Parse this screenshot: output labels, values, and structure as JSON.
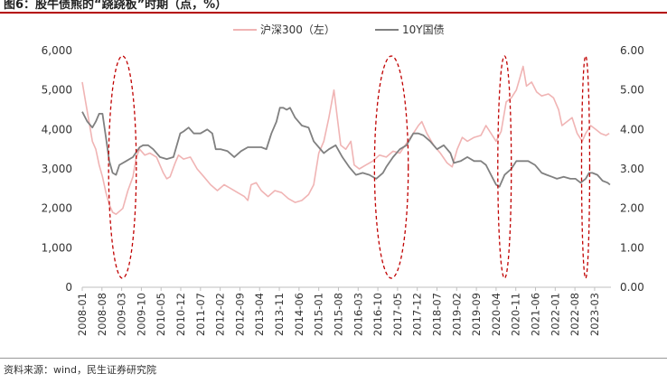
{
  "title": "图6：股牛债熊的“跷跷板”时期（点，%）",
  "source": "资料来源：wind，民生证券研究院",
  "chart_data": {
    "type": "line",
    "legend": {
      "position": "top-center"
    },
    "y_left": {
      "min": 0,
      "max": 6000,
      "ticks": [
        "0",
        "1,000",
        "2,000",
        "3,000",
        "4,000",
        "5,000",
        "6,000"
      ]
    },
    "y_right": {
      "min": 0,
      "max": 6,
      "ticks": [
        "0.00",
        "1.00",
        "2.00",
        "3.00",
        "4.00",
        "5.00",
        "6.00"
      ]
    },
    "x_ticks": [
      "2008-01",
      "2008-08",
      "2009-03",
      "2009-10",
      "2010-05",
      "2010-12",
      "2011-07",
      "2012-02",
      "2012-09",
      "2013-04",
      "2013-11",
      "2014-06",
      "2015-01",
      "2015-08",
      "2016-03",
      "2016-10",
      "2017-05",
      "2017-12",
      "2018-07",
      "2019-02",
      "2019-09",
      "2020-04",
      "2020-11",
      "2021-06",
      "2022-01",
      "2022-08",
      "2023-03"
    ],
    "series": [
      {
        "name": "沪深300（左）",
        "axis": "left",
        "color": "#f0b4b4",
        "points": [
          [
            2008.0,
            5200
          ],
          [
            2008.1,
            4700
          ],
          [
            2008.2,
            4200
          ],
          [
            2008.3,
            3700
          ],
          [
            2008.4,
            3500
          ],
          [
            2008.5,
            3100
          ],
          [
            2008.6,
            2800
          ],
          [
            2008.7,
            2400
          ],
          [
            2008.8,
            2100
          ],
          [
            2008.9,
            1900
          ],
          [
            2009.0,
            1850
          ],
          [
            2009.2,
            2000
          ],
          [
            2009.35,
            2450
          ],
          [
            2009.5,
            2800
          ],
          [
            2009.6,
            3300
          ],
          [
            2009.7,
            3500
          ],
          [
            2009.85,
            3350
          ],
          [
            2010.0,
            3400
          ],
          [
            2010.2,
            3300
          ],
          [
            2010.4,
            2900
          ],
          [
            2010.5,
            2750
          ],
          [
            2010.6,
            2800
          ],
          [
            2010.75,
            3150
          ],
          [
            2010.85,
            3350
          ],
          [
            2011.0,
            3250
          ],
          [
            2011.2,
            3300
          ],
          [
            2011.4,
            3000
          ],
          [
            2011.6,
            2800
          ],
          [
            2011.8,
            2600
          ],
          [
            2012.0,
            2450
          ],
          [
            2012.2,
            2600
          ],
          [
            2012.4,
            2500
          ],
          [
            2012.6,
            2400
          ],
          [
            2012.8,
            2300
          ],
          [
            2012.9,
            2200
          ],
          [
            2013.0,
            2600
          ],
          [
            2013.15,
            2650
          ],
          [
            2013.3,
            2450
          ],
          [
            2013.5,
            2300
          ],
          [
            2013.7,
            2450
          ],
          [
            2013.9,
            2400
          ],
          [
            2014.1,
            2250
          ],
          [
            2014.3,
            2150
          ],
          [
            2014.5,
            2200
          ],
          [
            2014.7,
            2350
          ],
          [
            2014.85,
            2600
          ],
          [
            2015.0,
            3400
          ],
          [
            2015.15,
            3700
          ],
          [
            2015.3,
            4300
          ],
          [
            2015.45,
            5000
          ],
          [
            2015.55,
            4300
          ],
          [
            2015.65,
            3600
          ],
          [
            2015.8,
            3500
          ],
          [
            2015.95,
            3700
          ],
          [
            2016.05,
            3100
          ],
          [
            2016.2,
            3000
          ],
          [
            2016.4,
            3100
          ],
          [
            2016.6,
            3200
          ],
          [
            2016.8,
            3350
          ],
          [
            2017.0,
            3300
          ],
          [
            2017.2,
            3450
          ],
          [
            2017.4,
            3400
          ],
          [
            2017.6,
            3650
          ],
          [
            2017.8,
            3900
          ],
          [
            2017.95,
            4100
          ],
          [
            2018.05,
            4200
          ],
          [
            2018.2,
            3900
          ],
          [
            2018.4,
            3600
          ],
          [
            2018.6,
            3400
          ],
          [
            2018.8,
            3150
          ],
          [
            2018.95,
            3050
          ],
          [
            2019.1,
            3500
          ],
          [
            2019.25,
            3800
          ],
          [
            2019.4,
            3700
          ],
          [
            2019.6,
            3800
          ],
          [
            2019.8,
            3850
          ],
          [
            2019.95,
            4100
          ],
          [
            2020.1,
            3900
          ],
          [
            2020.25,
            3700
          ],
          [
            2020.4,
            3950
          ],
          [
            2020.55,
            4700
          ],
          [
            2020.7,
            4800
          ],
          [
            2020.85,
            5000
          ],
          [
            2020.95,
            5300
          ],
          [
            2021.05,
            5600
          ],
          [
            2021.15,
            5100
          ],
          [
            2021.3,
            5200
          ],
          [
            2021.45,
            4950
          ],
          [
            2021.6,
            4850
          ],
          [
            2021.8,
            4900
          ],
          [
            2021.95,
            4800
          ],
          [
            2022.1,
            4500
          ],
          [
            2022.2,
            4100
          ],
          [
            2022.35,
            4200
          ],
          [
            2022.5,
            4300
          ],
          [
            2022.65,
            3900
          ],
          [
            2022.8,
            3700
          ],
          [
            2022.9,
            3900
          ],
          [
            2023.05,
            4100
          ],
          [
            2023.2,
            4000
          ],
          [
            2023.35,
            3900
          ],
          [
            2023.5,
            3850
          ],
          [
            2023.6,
            3900
          ]
        ]
      },
      {
        "name": "10Y国债",
        "axis": "right",
        "color": "#808080",
        "points": [
          [
            2008.0,
            4.45
          ],
          [
            2008.15,
            4.2
          ],
          [
            2008.3,
            4.05
          ],
          [
            2008.4,
            4.2
          ],
          [
            2008.5,
            4.4
          ],
          [
            2008.6,
            4.4
          ],
          [
            2008.7,
            3.8
          ],
          [
            2008.8,
            3.2
          ],
          [
            2008.9,
            2.9
          ],
          [
            2009.0,
            2.85
          ],
          [
            2009.1,
            3.1
          ],
          [
            2009.3,
            3.2
          ],
          [
            2009.5,
            3.3
          ],
          [
            2009.7,
            3.55
          ],
          [
            2009.8,
            3.6
          ],
          [
            2009.95,
            3.6
          ],
          [
            2010.1,
            3.5
          ],
          [
            2010.3,
            3.3
          ],
          [
            2010.5,
            3.25
          ],
          [
            2010.7,
            3.3
          ],
          [
            2010.9,
            3.9
          ],
          [
            2011.0,
            3.95
          ],
          [
            2011.15,
            4.05
          ],
          [
            2011.3,
            3.9
          ],
          [
            2011.5,
            3.9
          ],
          [
            2011.7,
            4.0
          ],
          [
            2011.85,
            3.9
          ],
          [
            2011.95,
            3.5
          ],
          [
            2012.1,
            3.5
          ],
          [
            2012.3,
            3.45
          ],
          [
            2012.5,
            3.3
          ],
          [
            2012.7,
            3.45
          ],
          [
            2012.9,
            3.55
          ],
          [
            2013.1,
            3.55
          ],
          [
            2013.3,
            3.55
          ],
          [
            2013.45,
            3.5
          ],
          [
            2013.6,
            3.9
          ],
          [
            2013.75,
            4.2
          ],
          [
            2013.85,
            4.55
          ],
          [
            2013.95,
            4.55
          ],
          [
            2014.05,
            4.5
          ],
          [
            2014.15,
            4.55
          ],
          [
            2014.3,
            4.3
          ],
          [
            2014.5,
            4.1
          ],
          [
            2014.7,
            4.05
          ],
          [
            2014.85,
            3.7
          ],
          [
            2015.0,
            3.55
          ],
          [
            2015.15,
            3.4
          ],
          [
            2015.3,
            3.5
          ],
          [
            2015.5,
            3.6
          ],
          [
            2015.7,
            3.3
          ],
          [
            2015.9,
            3.05
          ],
          [
            2016.1,
            2.85
          ],
          [
            2016.3,
            2.9
          ],
          [
            2016.5,
            2.85
          ],
          [
            2016.7,
            2.75
          ],
          [
            2016.9,
            2.9
          ],
          [
            2017.0,
            3.05
          ],
          [
            2017.2,
            3.3
          ],
          [
            2017.4,
            3.5
          ],
          [
            2017.6,
            3.6
          ],
          [
            2017.8,
            3.9
          ],
          [
            2017.95,
            3.9
          ],
          [
            2018.1,
            3.85
          ],
          [
            2018.3,
            3.7
          ],
          [
            2018.5,
            3.5
          ],
          [
            2018.7,
            3.6
          ],
          [
            2018.9,
            3.4
          ],
          [
            2019.0,
            3.15
          ],
          [
            2019.2,
            3.2
          ],
          [
            2019.4,
            3.3
          ],
          [
            2019.6,
            3.2
          ],
          [
            2019.8,
            3.2
          ],
          [
            2019.95,
            3.1
          ],
          [
            2020.1,
            2.85
          ],
          [
            2020.25,
            2.6
          ],
          [
            2020.35,
            2.55
          ],
          [
            2020.5,
            2.85
          ],
          [
            2020.7,
            3.0
          ],
          [
            2020.85,
            3.2
          ],
          [
            2021.0,
            3.2
          ],
          [
            2021.2,
            3.2
          ],
          [
            2021.4,
            3.1
          ],
          [
            2021.6,
            2.9
          ],
          [
            2021.75,
            2.85
          ],
          [
            2021.9,
            2.8
          ],
          [
            2022.05,
            2.75
          ],
          [
            2022.25,
            2.8
          ],
          [
            2022.45,
            2.75
          ],
          [
            2022.6,
            2.75
          ],
          [
            2022.75,
            2.65
          ],
          [
            2022.9,
            2.75
          ],
          [
            2023.0,
            2.9
          ],
          [
            2023.1,
            2.9
          ],
          [
            2023.25,
            2.85
          ],
          [
            2023.4,
            2.7
          ],
          [
            2023.55,
            2.65
          ],
          [
            2023.62,
            2.6
          ]
        ]
      }
    ],
    "highlight_periods": [
      {
        "start": 2008.78,
        "end": 2009.6,
        "color": "#c00000"
      },
      {
        "start": 2016.65,
        "end": 2017.65,
        "color": "#c00000"
      },
      {
        "start": 2020.3,
        "end": 2020.7,
        "color": "#c00000"
      },
      {
        "start": 2022.78,
        "end": 2023.02,
        "color": "#c00000"
      }
    ]
  }
}
